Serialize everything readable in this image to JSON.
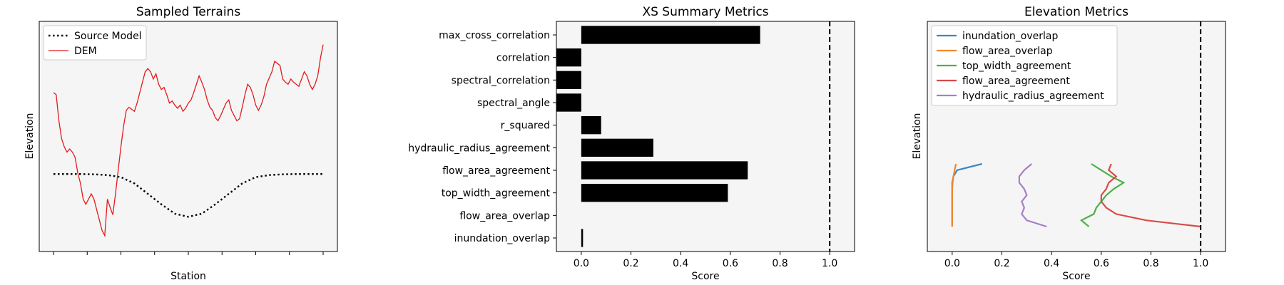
{
  "colors": {
    "dem": "#e41a1c",
    "source_model": "#000000",
    "bars": "#000000",
    "refline": "#000000",
    "axes_bg": "#f5f5f5",
    "c_inundation": "#3a86c4",
    "c_flow_overlap": "#f5862a",
    "c_top_width": "#4db049",
    "c_flow_agreement": "#d84a4a",
    "c_hydraulic": "#a67fc8"
  },
  "chart_data": [
    {
      "type": "line",
      "title": "Sampled Terrains",
      "xlabel": "Station",
      "ylabel": "Elevation",
      "x_ticks_labeled": false,
      "y_ticks_labeled": false,
      "legend_position": "top-left",
      "series": [
        {
          "name": "Source Model",
          "style": "dotted",
          "x": [
            0,
            0.05,
            0.1,
            0.15,
            0.2,
            0.25,
            0.3,
            0.35,
            0.4,
            0.45,
            0.5,
            0.55,
            0.6,
            0.65,
            0.7,
            0.75,
            0.8,
            0.85,
            0.9,
            0.95,
            1
          ],
          "y": [
            -0.36,
            -0.36,
            -0.36,
            -0.363,
            -0.37,
            -0.39,
            -0.45,
            -0.55,
            -0.65,
            -0.74,
            -0.77,
            -0.74,
            -0.65,
            -0.55,
            -0.45,
            -0.39,
            -0.37,
            -0.363,
            -0.36,
            -0.36,
            -0.36
          ]
        },
        {
          "name": "DEM",
          "style": "solid",
          "x": [
            0,
            0.01,
            0.02,
            0.03,
            0.04,
            0.05,
            0.06,
            0.07,
            0.08,
            0.09,
            0.1,
            0.11,
            0.12,
            0.13,
            0.14,
            0.15,
            0.16,
            0.17,
            0.18,
            0.19,
            0.2,
            0.21,
            0.22,
            0.23,
            0.24,
            0.25,
            0.26,
            0.27,
            0.28,
            0.29,
            0.3,
            0.31,
            0.32,
            0.33,
            0.34,
            0.35,
            0.36,
            0.37,
            0.38,
            0.39,
            0.4,
            0.41,
            0.42,
            0.43,
            0.44,
            0.45,
            0.46,
            0.47,
            0.48,
            0.49,
            0.5,
            0.51,
            0.52,
            0.53,
            0.54,
            0.55,
            0.56,
            0.57,
            0.58,
            0.59,
            0.6,
            0.61,
            0.62,
            0.63,
            0.64,
            0.65,
            0.66,
            0.67,
            0.68,
            0.69,
            0.7,
            0.71,
            0.72,
            0.73,
            0.74,
            0.75,
            0.76,
            0.77,
            0.78,
            0.79,
            0.8,
            0.81,
            0.82,
            0.83,
            0.84,
            0.85,
            0.86,
            0.87,
            0.88,
            0.89,
            0.9,
            0.91,
            0.92,
            0.93,
            0.94,
            0.95,
            0.96,
            0.97,
            0.98,
            0.99,
            1
          ],
          "y": [
            0.42,
            0.4,
            0.15,
            -0.02,
            -0.1,
            -0.15,
            -0.12,
            -0.15,
            -0.2,
            -0.35,
            -0.45,
            -0.6,
            -0.65,
            -0.6,
            -0.55,
            -0.6,
            -0.7,
            -0.8,
            -0.9,
            -0.95,
            -0.6,
            -0.68,
            -0.75,
            -0.55,
            -0.32,
            -0.1,
            0.1,
            0.25,
            0.28,
            0.26,
            0.24,
            0.32,
            0.42,
            0.52,
            0.62,
            0.65,
            0.62,
            0.55,
            0.6,
            0.5,
            0.45,
            0.47,
            0.4,
            0.32,
            0.34,
            0.3,
            0.27,
            0.3,
            0.24,
            0.27,
            0.32,
            0.35,
            0.42,
            0.5,
            0.58,
            0.52,
            0.45,
            0.35,
            0.28,
            0.25,
            0.18,
            0.15,
            0.2,
            0.26,
            0.32,
            0.35,
            0.25,
            0.2,
            0.15,
            0.17,
            0.28,
            0.4,
            0.5,
            0.47,
            0.4,
            0.3,
            0.25,
            0.3,
            0.38,
            0.5,
            0.56,
            0.62,
            0.72,
            0.7,
            0.68,
            0.55,
            0.52,
            0.5,
            0.55,
            0.52,
            0.5,
            0.48,
            0.55,
            0.62,
            0.58,
            0.5,
            0.45,
            0.5,
            0.58,
            0.75,
            0.88
          ]
        }
      ]
    },
    {
      "type": "bar",
      "orientation": "horizontal",
      "title": "XS Summary Metrics",
      "xlabel": "Score",
      "xlim": [
        -0.1,
        1.1
      ],
      "x_ticks": [
        "0.0",
        "0.2",
        "0.4",
        "0.6",
        "0.8",
        "1.0"
      ],
      "reference_line": 1.0,
      "categories": [
        "max_cross_correlation",
        "correlation",
        "spectral_correlation",
        "spectral_angle",
        "r_squared",
        "hydraulic_radius_agreement",
        "flow_area_agreement",
        "top_width_agreement",
        "flow_area_overlap",
        "inundation_overlap"
      ],
      "values": [
        0.72,
        -0.1,
        -0.1,
        -0.1,
        0.08,
        0.29,
        0.67,
        0.59,
        0.0,
        0.005
      ]
    },
    {
      "type": "line",
      "title": "Elevation Metrics",
      "xlabel": "Score",
      "ylabel": "Elevation",
      "xlim": [
        -0.1,
        1.1
      ],
      "x_ticks": [
        "0.0",
        "0.2",
        "0.4",
        "0.6",
        "0.8",
        "1.0"
      ],
      "y_ticks_labeled": false,
      "reference_line": 1.0,
      "legend_position": "top-left",
      "y": [
        0,
        0.1,
        0.2,
        0.3,
        0.4,
        0.5,
        0.6,
        0.7,
        0.8,
        0.9,
        1
      ],
      "series": [
        {
          "name": "inundation_overlap",
          "x": [
            0,
            0,
            0,
            0,
            0,
            0,
            0,
            0,
            0.005,
            0.02,
            0.12
          ]
        },
        {
          "name": "flow_area_overlap",
          "x": [
            0,
            0,
            0,
            0,
            0,
            0,
            0,
            0.002,
            0.005,
            0.01,
            0.015
          ]
        },
        {
          "name": "top_width_agreement",
          "x": [
            0.55,
            0.52,
            0.57,
            0.58,
            0.6,
            0.62,
            0.65,
            0.69,
            0.64,
            0.6,
            0.56
          ]
        },
        {
          "name": "flow_area_agreement",
          "x": [
            1.0,
            0.78,
            0.66,
            0.62,
            0.6,
            0.6,
            0.62,
            0.63,
            0.66,
            0.63,
            0.64
          ]
        },
        {
          "name": "hydraulic_radius_agreement",
          "x": [
            0.38,
            0.3,
            0.28,
            0.29,
            0.28,
            0.3,
            0.29,
            0.27,
            0.27,
            0.29,
            0.32
          ]
        }
      ]
    }
  ]
}
